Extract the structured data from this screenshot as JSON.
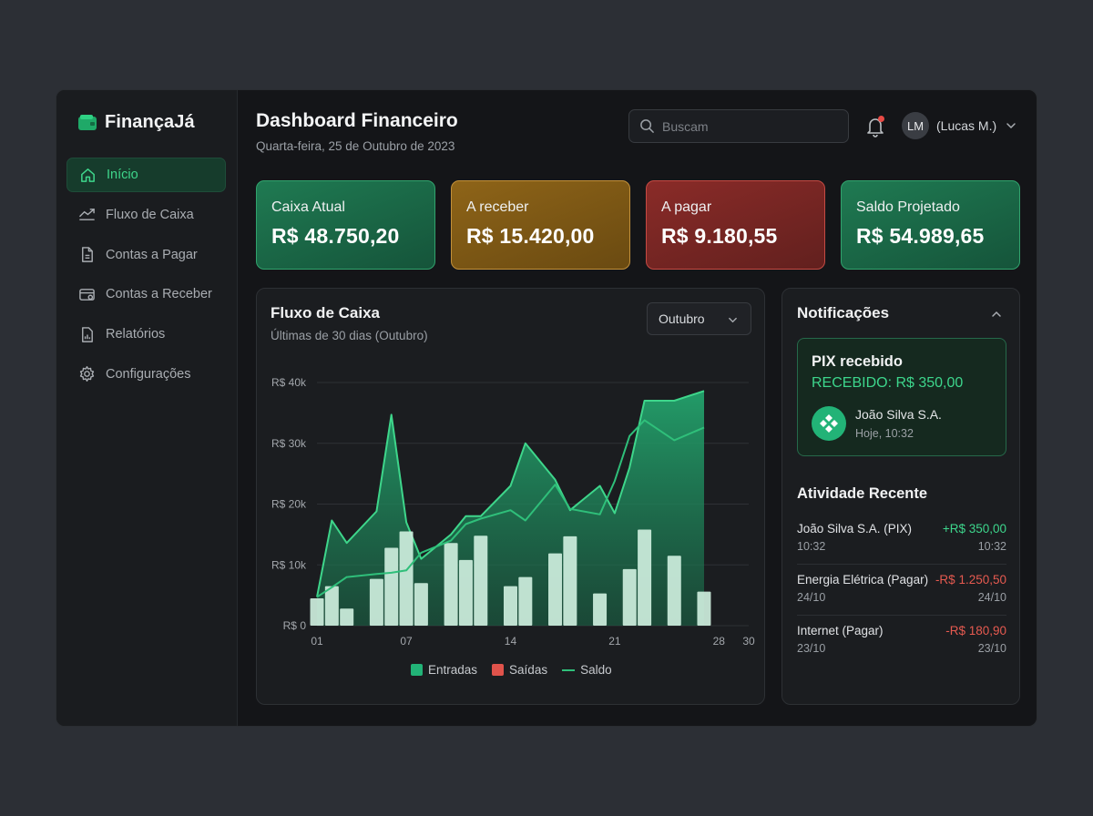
{
  "app": {
    "name": "FinançaJá",
    "accent": "#3ed68b"
  },
  "sidebar": {
    "items": [
      {
        "label": "Início",
        "icon": "home-icon",
        "active": true
      },
      {
        "label": "Fluxo de Caixa",
        "icon": "chart-line-icon"
      },
      {
        "label": "Contas a Pagar",
        "icon": "document-icon"
      },
      {
        "label": "Contas a Receber",
        "icon": "wallet-card-icon"
      },
      {
        "label": "Relatórios",
        "icon": "report-icon"
      },
      {
        "label": "Configurações",
        "icon": "gear-icon"
      }
    ]
  },
  "header": {
    "title": "Dashboard Financeiro",
    "date": "Quarta-feira, 25 de Outubro de 2023",
    "search_placeholder": "Buscam",
    "user_initials": "LM",
    "user_name": "(Lucas M.)",
    "notification_dot_color": "#e94a45"
  },
  "kpis": [
    {
      "label": "Caixa Atual",
      "value": "R$ 48.750,20",
      "color": "#1f7a52"
    },
    {
      "label": "A receber",
      "value": "R$ 15.420,00",
      "color": "#8e6418"
    },
    {
      "label": "A pagar",
      "value": "R$ 9.180,55",
      "color": "#8a2b28"
    },
    {
      "label": "Saldo Projetado",
      "value": "R$ 54.989,65",
      "color": "#1f7a52"
    }
  ],
  "cashflow": {
    "title": "Fluxo de Caixa",
    "subtitle": "Últimas de 30 dias (Outubro)",
    "period_select": "Outubro",
    "legend": [
      {
        "label": "Entradas",
        "color": "#22b377"
      },
      {
        "label": "Saídas",
        "color": "#e0534b"
      },
      {
        "label": "Saldo",
        "color": "#2fbf7a"
      }
    ]
  },
  "chart_data": {
    "type": "bar",
    "title": "Fluxo de Caixa",
    "ylim": [
      0,
      40000
    ],
    "y_ticks": [
      {
        "value": 0,
        "label": "R$ 0"
      },
      {
        "value": 10000,
        "label": "R$ 10k"
      },
      {
        "value": 20000,
        "label": "R$ 20k"
      },
      {
        "value": 30000,
        "label": "R$ 30k"
      },
      {
        "value": 40000,
        "label": "R$ 40k"
      }
    ],
    "x_ticks": [
      {
        "day": 1,
        "label": "01"
      },
      {
        "day": 7,
        "label": "07"
      },
      {
        "day": 14,
        "label": "14"
      },
      {
        "day": 21,
        "label": "21"
      },
      {
        "day": 28,
        "label": "28"
      },
      {
        "day": 30,
        "label": "30"
      }
    ],
    "grid": true,
    "legend_position": "bottom",
    "bars": [
      {
        "day": 1,
        "value": 4500
      },
      {
        "day": 2,
        "value": 6500
      },
      {
        "day": 3,
        "value": 2800
      },
      {
        "day": 5,
        "value": 7700
      },
      {
        "day": 6,
        "value": 12800
      },
      {
        "day": 7,
        "value": 15500
      },
      {
        "day": 8,
        "value": 7000
      },
      {
        "day": 10,
        "value": 13600
      },
      {
        "day": 11,
        "value": 10800
      },
      {
        "day": 12,
        "value": 14800
      },
      {
        "day": 14,
        "value": 6500
      },
      {
        "day": 15,
        "value": 8000
      },
      {
        "day": 17,
        "value": 11900
      },
      {
        "day": 18,
        "value": 14700
      },
      {
        "day": 20,
        "value": 5300
      },
      {
        "day": 22,
        "value": 9300
      },
      {
        "day": 23,
        "value": 15800
      },
      {
        "day": 25,
        "value": 11500
      },
      {
        "day": 27,
        "value": 5600
      }
    ],
    "series": [
      {
        "name": "Entradas",
        "type": "area",
        "points": [
          [
            1,
            4700
          ],
          [
            2,
            17300
          ],
          [
            3,
            13600
          ],
          [
            5,
            18800
          ],
          [
            6,
            34700
          ],
          [
            7,
            17000
          ],
          [
            8,
            11000
          ],
          [
            10,
            15000
          ],
          [
            11,
            18000
          ],
          [
            12,
            18000
          ],
          [
            14,
            23000
          ],
          [
            15,
            30000
          ],
          [
            17,
            24000
          ],
          [
            18,
            19000
          ],
          [
            20,
            23000
          ],
          [
            21,
            18500
          ],
          [
            22,
            26000
          ],
          [
            23,
            37000
          ],
          [
            25,
            37000
          ],
          [
            27,
            38600
          ]
        ]
      },
      {
        "name": "Saldo",
        "type": "line",
        "points": [
          [
            1,
            4700
          ],
          [
            2,
            6300
          ],
          [
            3,
            8000
          ],
          [
            5,
            8500
          ],
          [
            6,
            8700
          ],
          [
            7,
            9100
          ],
          [
            8,
            12000
          ],
          [
            10,
            14000
          ],
          [
            11,
            16700
          ],
          [
            12,
            17600
          ],
          [
            14,
            19000
          ],
          [
            15,
            17300
          ],
          [
            17,
            23200
          ],
          [
            18,
            19200
          ],
          [
            20,
            18300
          ],
          [
            21,
            23800
          ],
          [
            22,
            31200
          ],
          [
            23,
            33800
          ],
          [
            25,
            30500
          ],
          [
            27,
            32600
          ]
        ]
      }
    ]
  },
  "notifications": {
    "title": "Notificações",
    "card": {
      "title": "PIX recebido",
      "amount": "RECEBIDO: R$ 350,00",
      "from": "João Silva S.A.",
      "time": "Hoje, 10:32",
      "icon": "pix-icon"
    },
    "recent_title": "Atividade Recente",
    "activities": [
      {
        "name": "João Silva S.A. (PIX)",
        "amount": "+R$ 350,00",
        "date": "10:32",
        "date_right": "10:32",
        "positive": true
      },
      {
        "name": "Energia Elétrica (Pagar)",
        "amount": "-R$ 1.250,50",
        "date": "24/10",
        "date_right": "24/10",
        "positive": false
      },
      {
        "name": "Internet (Pagar)",
        "amount": "-R$ 180,90",
        "date": "23/10",
        "date_right": "23/10",
        "positive": false
      }
    ]
  }
}
